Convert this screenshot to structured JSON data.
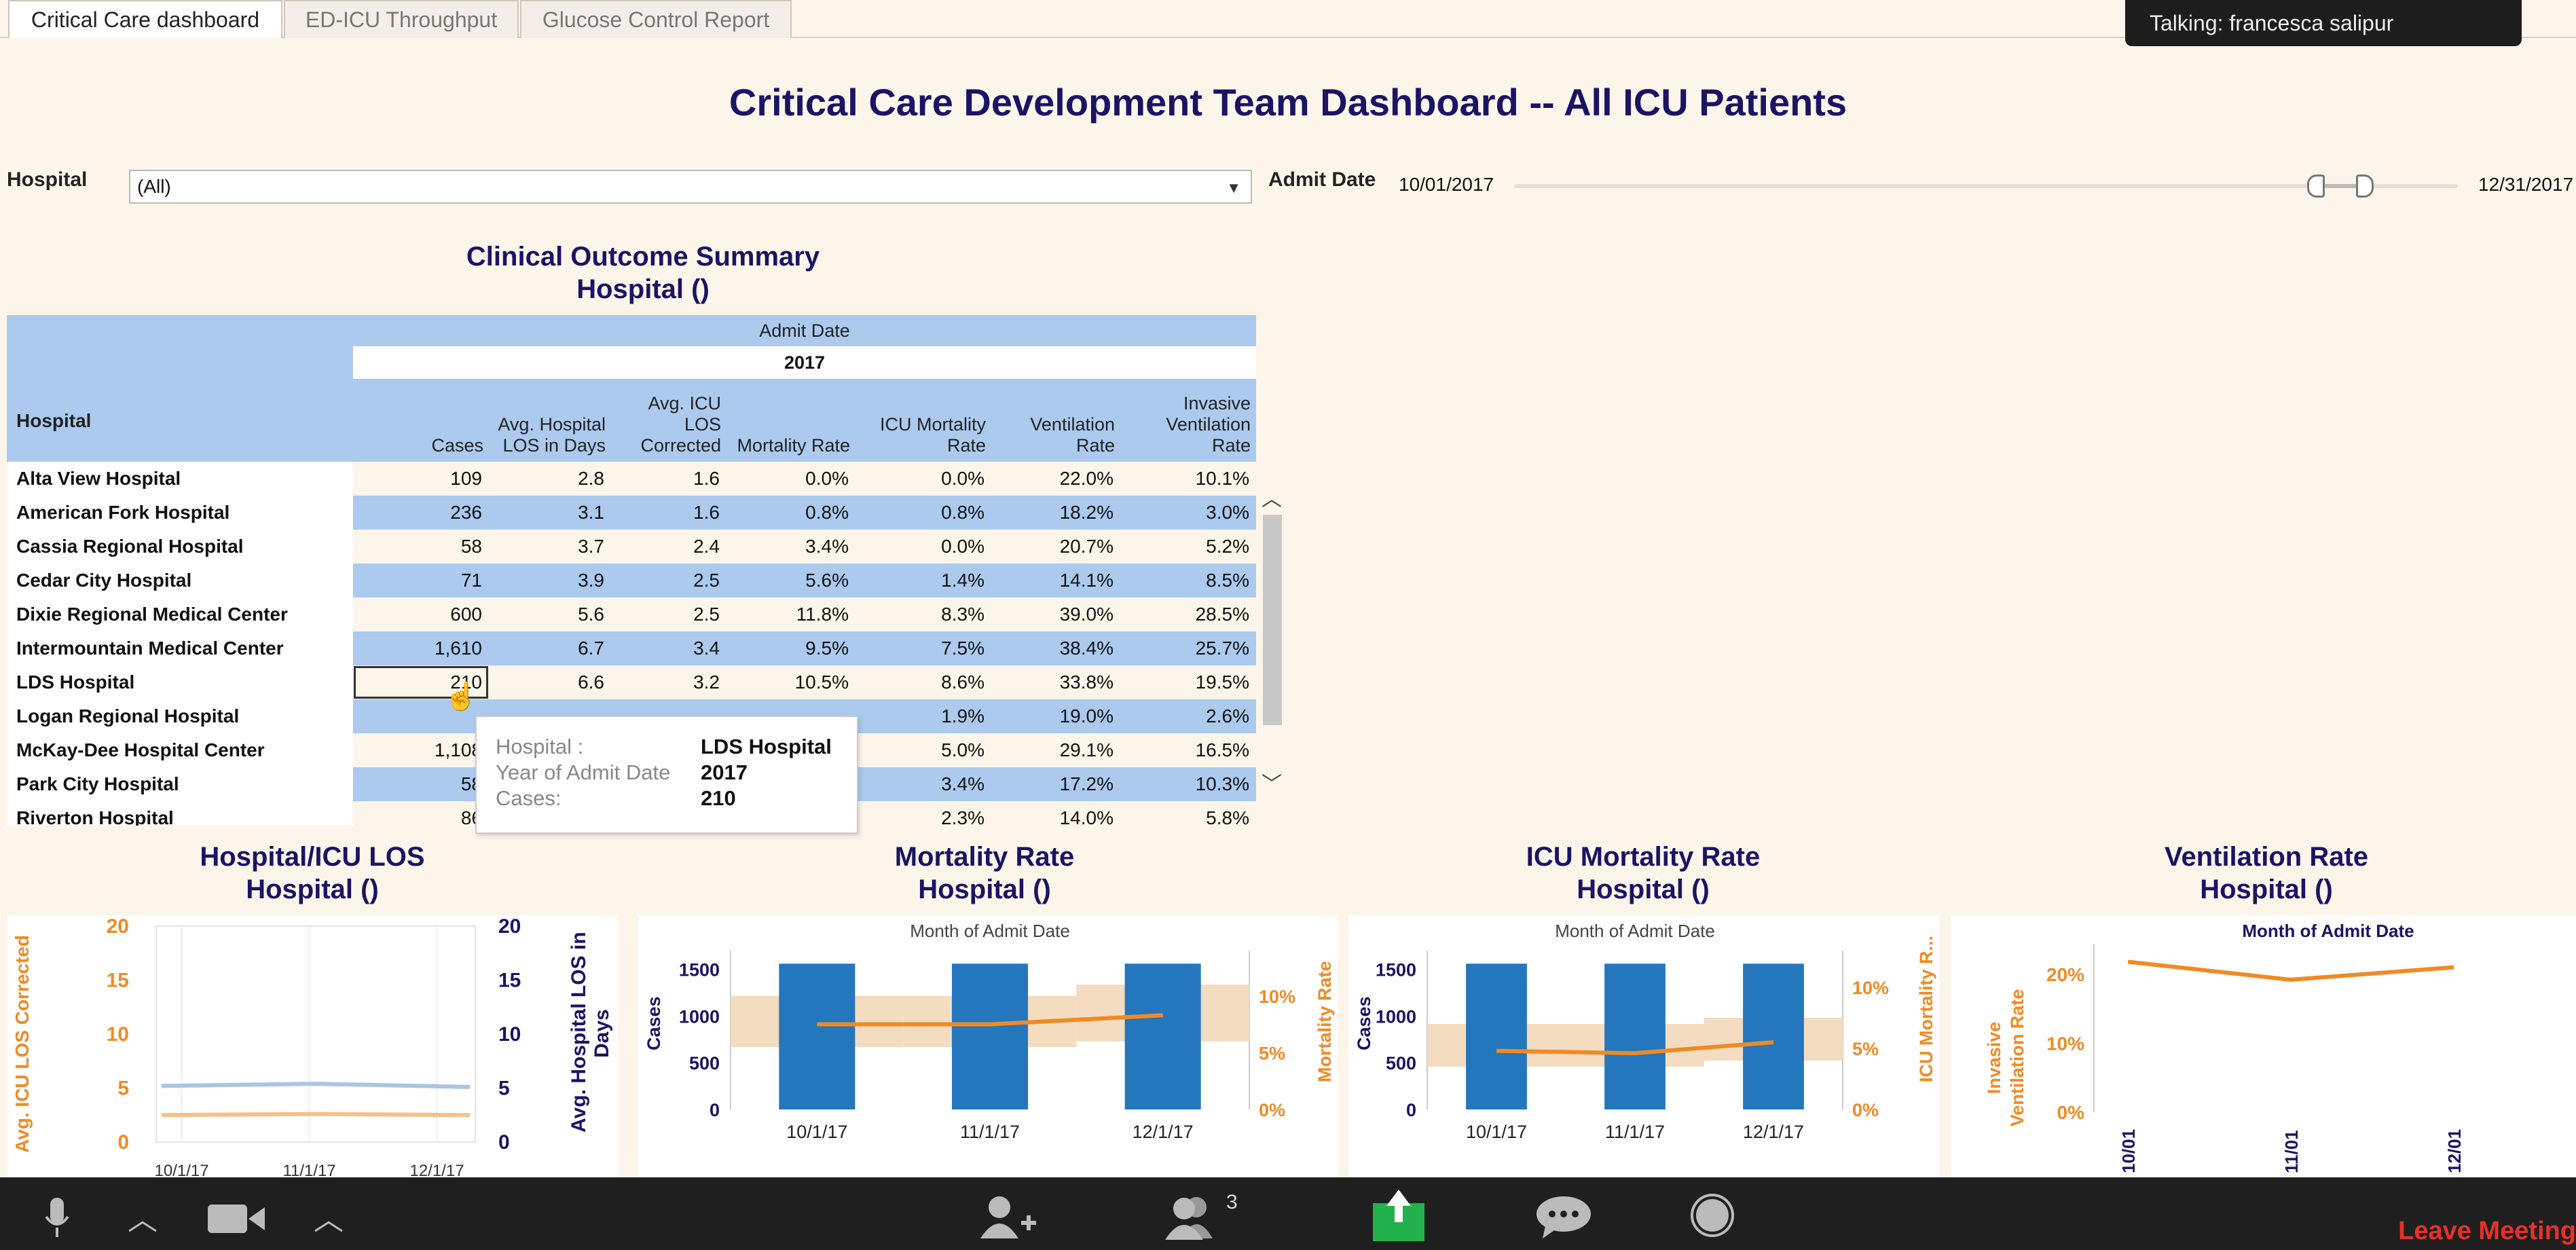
{
  "tabs": [
    {
      "label": "Critical Care dashboard",
      "active": true
    },
    {
      "label": "ED-ICU Throughput",
      "active": false
    },
    {
      "label": "Glucose Control Report",
      "active": false
    }
  ],
  "talking": "Talking: francesca salipur",
  "dashboard_title": "Critical Care Development Team Dashboard -- All ICU Patients",
  "filters": {
    "hospital_label": "Hospital",
    "hospital_value": "(All)",
    "admit_label": "Admit Date",
    "date_start": "10/01/2017",
    "date_end": "12/31/2017"
  },
  "summary": {
    "title1": "Clinical Outcome Summary",
    "title2": "Hospital ()",
    "admit_date": "Admit Date",
    "year": "2017",
    "row_header": "Hospital",
    "columns": [
      [
        "Cases"
      ],
      [
        "Avg. Hospital",
        "LOS in Days"
      ],
      [
        "Avg. ICU",
        "LOS",
        "Corrected"
      ],
      [
        "Mortality Rate"
      ],
      [
        "ICU Mortality",
        "Rate"
      ],
      [
        "Ventilation",
        "Rate"
      ],
      [
        "Invasive",
        "Ventilation",
        "Rate"
      ]
    ],
    "rows": [
      {
        "name": "Alta View Hospital",
        "values": [
          "109",
          "2.8",
          "1.6",
          "0.0%",
          "0.0%",
          "22.0%",
          "10.1%"
        ]
      },
      {
        "name": "American Fork Hospital",
        "values": [
          "236",
          "3.1",
          "1.6",
          "0.8%",
          "0.8%",
          "18.2%",
          "3.0%"
        ]
      },
      {
        "name": "Cassia Regional Hospital",
        "values": [
          "58",
          "3.7",
          "2.4",
          "3.4%",
          "0.0%",
          "20.7%",
          "5.2%"
        ]
      },
      {
        "name": "Cedar City Hospital",
        "values": [
          "71",
          "3.9",
          "2.5",
          "5.6%",
          "1.4%",
          "14.1%",
          "8.5%"
        ]
      },
      {
        "name": "Dixie Regional Medical Center",
        "values": [
          "600",
          "5.6",
          "2.5",
          "11.8%",
          "8.3%",
          "39.0%",
          "28.5%"
        ]
      },
      {
        "name": "Intermountain Medical Center",
        "values": [
          "1,610",
          "6.7",
          "3.4",
          "9.5%",
          "7.5%",
          "38.4%",
          "25.7%"
        ]
      },
      {
        "name": "LDS Hospital",
        "values": [
          "210",
          "6.6",
          "3.2",
          "10.5%",
          "8.6%",
          "33.8%",
          "19.5%"
        ]
      },
      {
        "name": "Logan Regional Hospital",
        "values": [
          "",
          "",
          "",
          "",
          "1.9%",
          "19.0%",
          "2.6%"
        ]
      },
      {
        "name": "McKay-Dee Hospital Center",
        "values": [
          "1,108",
          "",
          "",
          "",
          "5.0%",
          "29.1%",
          "16.5%"
        ]
      },
      {
        "name": "Park City Hospital",
        "values": [
          "58",
          "",
          "",
          "",
          "3.4%",
          "17.2%",
          "10.3%"
        ]
      },
      {
        "name": "Riverton Hospital",
        "values": [
          "86",
          "",
          "",
          "",
          "2.3%",
          "14.0%",
          "5.8%"
        ]
      }
    ]
  },
  "tooltip": {
    "hospital_label": "Hospital :",
    "hospital_value": "LDS Hospital",
    "year_label": "Year of Admit Date",
    "year_value": "2017",
    "cases_label": "Cases:",
    "cases_value": "210"
  },
  "charts": {
    "los": {
      "title1": "Hospital/ICU LOS",
      "title2": "Hospital ()",
      "left_axis": "Avg. ICU LOS Corrected",
      "right_axis": "Avg. Hospital LOS in Days"
    },
    "mort": {
      "title1": "Mortality Rate",
      "title2": "Hospital ()",
      "header": "Month of Admit Date",
      "left_axis": "Cases",
      "right_axis": "Mortality Rate"
    },
    "icu": {
      "title1": "ICU Mortality Rate",
      "title2": "Hospital ()",
      "header": "Month of Admit Date",
      "left_axis": "Cases",
      "right_axis": "ICU Mortality R..."
    },
    "vent": {
      "title1": "Ventilation Rate",
      "title2": "Hospital ()",
      "header": "Month of Admit Date",
      "left_axis": "Invasive Ventilation Rate"
    }
  },
  "chart_data": [
    {
      "type": "line",
      "title": "Hospital/ICU LOS",
      "x": [
        "10/1/17",
        "11/1/17",
        "12/1/17"
      ],
      "ylim": [
        0,
        20
      ],
      "left_ticks": [
        "0",
        "5",
        "10",
        "15",
        "20"
      ],
      "right_ticks": [
        "0",
        "5",
        "10",
        "15",
        "20"
      ],
      "series": [
        {
          "name": "Avg. Hospital LOS in Days",
          "values": [
            5.2,
            5.4,
            5.1
          ],
          "color": "#a9c4e6"
        },
        {
          "name": "Avg. ICU LOS Corrected",
          "values": [
            2.5,
            2.6,
            2.5
          ],
          "color": "#f5c08a"
        }
      ]
    },
    {
      "type": "bar",
      "title": "Mortality Rate",
      "categories": [
        "10/1/17",
        "11/1/17",
        "12/1/17"
      ],
      "bar_values": [
        1560,
        1560,
        1560
      ],
      "bar_ylim": [
        0,
        1700
      ],
      "bar_ticks": [
        "0",
        "500",
        "1000",
        "1500"
      ],
      "rate_values": [
        7.5,
        7.5,
        8.3
      ],
      "rate_ylim": [
        0,
        14
      ],
      "rate_ticks": [
        "0%",
        "5%",
        "10%"
      ],
      "band": [
        [
          5.5,
          10.0
        ],
        [
          5.5,
          10.0
        ],
        [
          6.0,
          11.0
        ]
      ]
    },
    {
      "type": "bar",
      "title": "ICU Mortality Rate",
      "categories": [
        "10/1/17",
        "11/1/17",
        "12/1/17"
      ],
      "bar_values": [
        1560,
        1560,
        1560
      ],
      "bar_ylim": [
        0,
        1700
      ],
      "bar_ticks": [
        "0",
        "500",
        "1000",
        "1500"
      ],
      "rate_values": [
        4.8,
        4.6,
        5.5
      ],
      "rate_ylim": [
        0,
        13
      ],
      "rate_ticks": [
        "0%",
        "5%",
        "10%"
      ],
      "band": [
        [
          3.5,
          7.0
        ],
        [
          3.5,
          7.0
        ],
        [
          4.0,
          7.5
        ]
      ]
    },
    {
      "type": "line",
      "title": "Ventilation Rate",
      "x": [
        "10/01",
        "11/01",
        "12/01"
      ],
      "ylim": [
        0,
        25
      ],
      "y_ticks": [
        "0%",
        "10%",
        "20%"
      ],
      "series": [
        {
          "name": "Invasive Ventilation Rate",
          "values": [
            21.8,
            19.2,
            21.0
          ],
          "color": "#f08a24"
        }
      ]
    }
  ],
  "taskbar": {
    "participants": "3",
    "leave": "Leave Meeting"
  },
  "colors": {
    "title": "#1b1464",
    "band_blue": "#abcaee",
    "bar_blue": "#2477bd",
    "orange": "#f08a24",
    "leave_red": "#e8302a"
  }
}
